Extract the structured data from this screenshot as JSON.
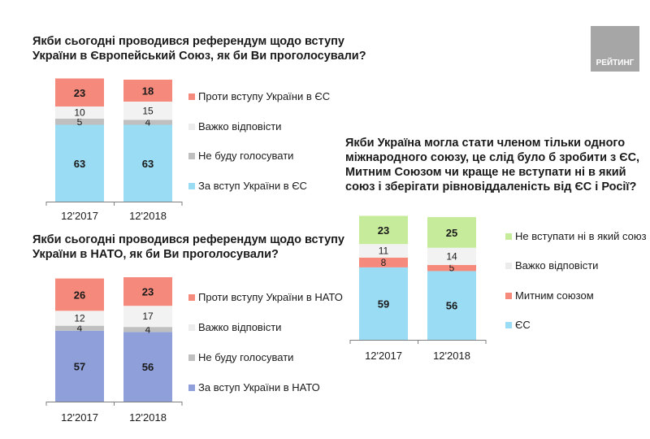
{
  "logo": {
    "text": "РЕЙТИНГ",
    "color": "#a6a6a6"
  },
  "chart_data": [
    {
      "type": "bar",
      "stacked": true,
      "title_lines": [
        "Якби сьогодні проводився референдум щодо вступу",
        "України в Європейський Союз, як би Ви проголосували?"
      ],
      "categories": [
        "12'2017",
        "12'2018"
      ],
      "legend_position": "right",
      "series": [
        {
          "name": "За вступ України в ЄС",
          "values": [
            63,
            63
          ],
          "color": "#9adcf4"
        },
        {
          "name": "Не буду голосувати",
          "values": [
            5,
            4
          ],
          "color": "#bfbfbf"
        },
        {
          "name": "Важко відповісти",
          "values": [
            10,
            15
          ],
          "color": "#f2f2f2"
        },
        {
          "name": "Проти вступу України в ЄС",
          "values": [
            23,
            18
          ],
          "color": "#f58a7c"
        }
      ]
    },
    {
      "type": "bar",
      "stacked": true,
      "title_lines": [
        "Якби сьогодні проводився референдум щодо вступу",
        "України в НАТО, як би Ви проголосували?"
      ],
      "categories": [
        "12'2017",
        "12'2018"
      ],
      "legend_position": "right",
      "series": [
        {
          "name": "За вступ України в НАТО",
          "values": [
            57,
            56
          ],
          "color": "#8e9fd9"
        },
        {
          "name": "Не буду голосувати",
          "values": [
            4,
            4
          ],
          "color": "#bfbfbf"
        },
        {
          "name": "Важко відповісти",
          "values": [
            12,
            17
          ],
          "color": "#f2f2f2"
        },
        {
          "name": "Проти вступу України в НАТО",
          "values": [
            26,
            23
          ],
          "color": "#f58a7c"
        }
      ]
    },
    {
      "type": "bar",
      "stacked": true,
      "title_lines": [
        "Якби Україна могла стати членом тільки одного",
        "міжнародного союзу, це слід було б зробити з ЄС,",
        "Митним Союзом чи краще не вступати ні в який",
        "союз і зберігати рівновіддаленість від ЄС і Росії?"
      ],
      "categories": [
        "12'2017",
        "12'2018"
      ],
      "legend_position": "right",
      "series": [
        {
          "name": "ЄС",
          "values": [
            59,
            56
          ],
          "color": "#9adcf4"
        },
        {
          "name": "Митним союзом",
          "values": [
            8,
            5
          ],
          "color": "#f58a7c"
        },
        {
          "name": "Важко відповісти",
          "values": [
            11,
            14
          ],
          "color": "#f2f2f2"
        },
        {
          "name": "Не вступати ні в який союз",
          "values": [
            23,
            25
          ],
          "color": "#c6eb9b"
        }
      ]
    }
  ]
}
